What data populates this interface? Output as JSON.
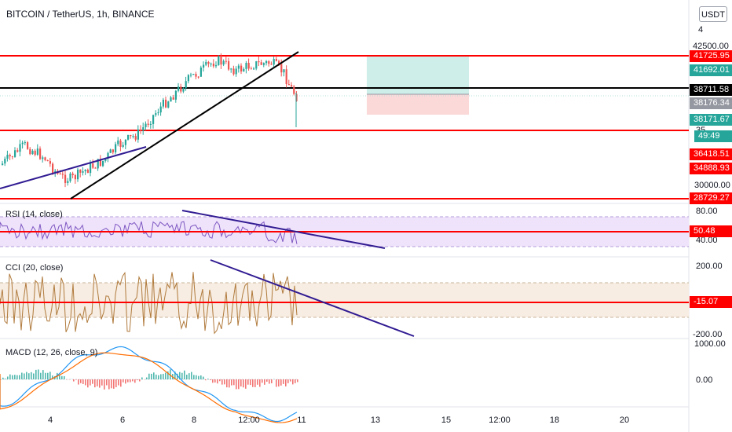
{
  "title": "BITCOIN / TetherUS, 1h, BINANCE",
  "currency_button": "USDT",
  "colors": {
    "up": "#26a69a",
    "down": "#ef5350",
    "red_line": "#ff0000",
    "trend_dark": "#311b92",
    "black": "#000000",
    "rsi_line": "#7e57c2",
    "rsi_band": "#efe3fb",
    "cci_line": "#b07a3c",
    "cci_band": "#f7ede2",
    "macd_line": "#2196f3",
    "signal_line": "#ff6d00"
  },
  "axis": {
    "price_top": "4",
    "price_42500": "42500.00",
    "price_35000": "35",
    "price_30000": "30000.00",
    "rsi_80": "80.00",
    "rsi_40": "40.00",
    "cci_200": "200.00",
    "cci_m200": "-200.00",
    "macd_1000": "1000.00",
    "macd_0": "0.00"
  },
  "price_tags": [
    {
      "text": "41725.95",
      "color": "#ff0000"
    },
    {
      "text": "41692.01",
      "color": "#26a69a"
    },
    {
      "text": "38711.58",
      "color": "#000000"
    },
    {
      "text": "38176.34",
      "color": "#9598a1"
    },
    {
      "text": "38171.67",
      "color": "#26a69a"
    },
    {
      "text": "49:49",
      "color": "#26a69a"
    },
    {
      "text": "36418.51",
      "color": "#ff0000"
    },
    {
      "text": "34888.93",
      "color": "#ff0000"
    },
    {
      "text": "28729.27",
      "color": "#ff0000"
    }
  ],
  "rsi_tag": "50.48",
  "cci_tag": "-15.07",
  "indicators": {
    "rsi": "RSI (14, close)",
    "cci": "CCI (20, close)",
    "macd": "MACD (12, 26, close, 9)"
  },
  "x_ticks": [
    "4",
    "6",
    "8",
    "12:00",
    "11",
    "13",
    "15",
    "12:00",
    "18",
    "20"
  ],
  "chart_data": {
    "type": "candlestick",
    "symbol": "BITCOIN / TetherUS",
    "interval": "1h",
    "exchange": "BINANCE",
    "price_levels": [
      41725.95,
      38711.58,
      36418.51,
      28729.27
    ],
    "last_price": 38176.34,
    "long_position_target": 41692.01,
    "long_position_stop": 38171.67,
    "rsi_value": 50.48,
    "cci_value": -15.07,
    "x_ticks": [
      "4",
      "6",
      "8",
      "12:00",
      "11",
      "13",
      "15",
      "12:00",
      "18",
      "20"
    ]
  }
}
